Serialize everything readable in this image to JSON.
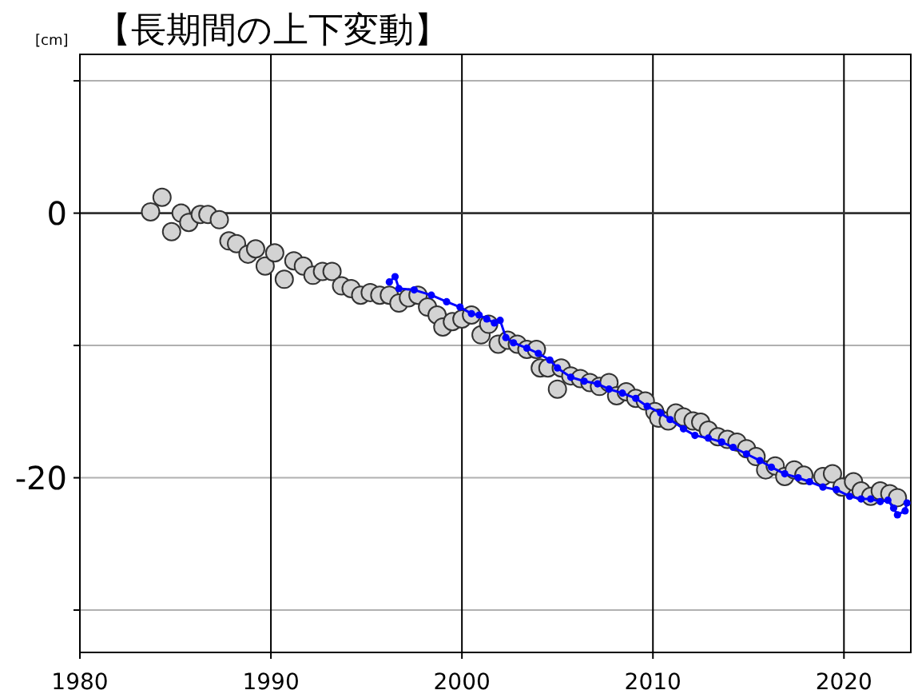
{
  "chart_data": {
    "type": "line",
    "title": "【長期間の上下変動】",
    "ylabel": "[cm]",
    "xlim": [
      1980,
      2023.5
    ],
    "ylim": [
      -33.2,
      12
    ],
    "xticks": [
      1980,
      1990,
      2000,
      2010,
      2020
    ],
    "yticks": [
      {
        "value": 10,
        "label": null
      },
      0,
      {
        "value": -10,
        "label": null
      },
      -20,
      {
        "value": -30,
        "label": null
      }
    ],
    "grid": true,
    "ref_lines": [
      {
        "axis": "y",
        "value": 0,
        "color": "#333333"
      }
    ],
    "series": [
      {
        "type": "scatter",
        "color": "#d3d3d3",
        "marker": "circle",
        "x": [
          1983.7,
          1984.3,
          1984.8,
          1985.3,
          1985.7,
          1986.3,
          1986.7,
          1987.3,
          1987.8,
          1988.2,
          1988.8,
          1989.2,
          1989.7,
          1990.2,
          1990.7,
          1991.2,
          1991.7,
          1992.2,
          1992.7,
          1993.2,
          1993.7,
          1994.2,
          1994.7,
          1995.2,
          1995.7,
          1996.2,
          1996.7,
          1997.2,
          1997.7,
          1998.2,
          1998.7,
          1999.0,
          1999.5,
          2000.0,
          2000.5,
          2001.0,
          2001.4,
          2001.9,
          2002.4,
          2002.9,
          2003.4,
          2003.9,
          2004.1,
          2004.5,
          2005.0,
          2005.2,
          2005.7,
          2006.2,
          2006.7,
          2007.2,
          2007.7,
          2008.1,
          2008.6,
          2009.1,
          2009.6,
          2010.1,
          2010.3,
          2010.8,
          2011.2,
          2011.6,
          2012.1,
          2012.5,
          2012.9,
          2013.4,
          2013.9,
          2014.4,
          2014.9,
          2015.4,
          2015.9,
          2016.4,
          2016.9,
          2017.4,
          2017.9,
          2018.9,
          2019.4,
          2019.9,
          2020.5,
          2020.9,
          2021.4,
          2021.9,
          2022.4,
          2022.8
        ],
        "values": [
          0.1,
          1.2,
          -1.4,
          0,
          -0.7,
          -0.1,
          -0.1,
          -0.5,
          -2.1,
          -2.3,
          -3.1,
          -2.7,
          -4.0,
          -3.0,
          -5.0,
          -3.6,
          -4.0,
          -4.7,
          -4.4,
          -4.4,
          -5.5,
          -5.7,
          -6.2,
          -6.0,
          -6.2,
          -6.2,
          -6.8,
          -6.4,
          -6.2,
          -7.1,
          -7.7,
          -8.6,
          -8.2,
          -8.0,
          -7.7,
          -9.2,
          -8.4,
          -9.9,
          -9.6,
          -9.9,
          -10.3,
          -10.3,
          -11.7,
          -11.7,
          -13.3,
          -11.7,
          -12.3,
          -12.5,
          -12.8,
          -13.1,
          -12.8,
          -13.8,
          -13.5,
          -14.0,
          -14.2,
          -15.0,
          -15.5,
          -15.7,
          -15.1,
          -15.4,
          -15.7,
          -15.8,
          -16.4,
          -16.9,
          -17.1,
          -17.3,
          -17.8,
          -18.4,
          -19.4,
          -19.1,
          -19.9,
          -19.4,
          -19.8,
          -19.9,
          -19.7,
          -20.7,
          -20.3,
          -21.0,
          -21.4,
          -21.0,
          -21.2,
          -21.5
        ]
      },
      {
        "color": "#0000ff",
        "marker": "dot",
        "x": [
          1996.2,
          1996.5,
          1996.7,
          1997.5,
          1998.4,
          1999.2,
          1999.9,
          2000.5,
          2000.9,
          2001.3,
          2001.7,
          2002.0,
          2002.3,
          2002.7,
          2003.4,
          2004.0,
          2004.6,
          2005.0,
          2005.7,
          2006.4,
          2007.1,
          2007.7,
          2008.4,
          2009.1,
          2009.7,
          2010.4,
          2010.9,
          2011.6,
          2012.2,
          2012.9,
          2013.6,
          2014.2,
          2014.9,
          2015.6,
          2016.2,
          2016.9,
          2017.6,
          2018.2,
          2018.9,
          2019.6,
          2020.3,
          2020.9,
          2021.4,
          2021.9,
          2022.3,
          2022.6,
          2022.8,
          2023.2,
          2023.3
        ],
        "values": [
          -5.2,
          -4.8,
          -5.7,
          -5.8,
          -6.2,
          -6.7,
          -7.1,
          -7.6,
          -7.7,
          -8.0,
          -8.3,
          -8.1,
          -9.4,
          -9.8,
          -10.2,
          -10.6,
          -11.1,
          -11.7,
          -12.4,
          -12.7,
          -12.9,
          -13.3,
          -13.6,
          -14.0,
          -14.6,
          -15.1,
          -15.6,
          -16.3,
          -16.8,
          -17.0,
          -17.3,
          -17.7,
          -18.2,
          -18.7,
          -19.2,
          -19.7,
          -20.0,
          -20.3,
          -20.7,
          -20.9,
          -21.4,
          -21.6,
          -21.6,
          -21.8,
          -21.7,
          -22.3,
          -22.8,
          -22.5,
          -21.9
        ]
      }
    ]
  }
}
